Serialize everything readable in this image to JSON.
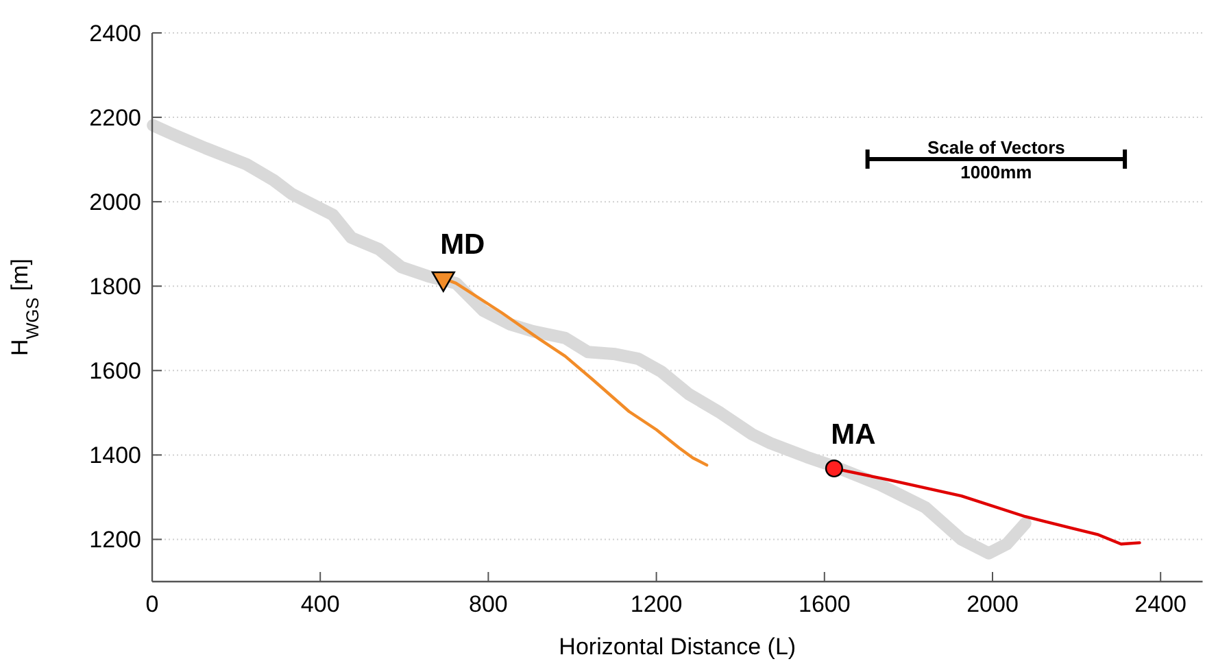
{
  "chart_data": {
    "type": "line",
    "xlabel": "Horizontal Distance (L)",
    "ylabel": "H$_{WGS}$ [m]",
    "xlim": [
      0,
      2500
    ],
    "ylim": [
      1100,
      2400
    ],
    "xticks": [
      0,
      400,
      800,
      1200,
      1600,
      2000,
      2400
    ],
    "yticks": [
      1200,
      1400,
      1600,
      1800,
      2000,
      2200,
      2400
    ],
    "grid": "y",
    "line_style": "solid",
    "series": [
      {
        "color": "#d9d9d9",
        "x": [
          2,
          51,
          127,
          224,
          289,
          333,
          430,
          474,
          539,
          593,
          658,
          723,
          788,
          853,
          907,
          983,
          1037,
          1102,
          1157,
          1211,
          1276,
          1352,
          1428,
          1471,
          1558,
          1623,
          1731,
          1840,
          1926,
          1991,
          2034,
          2078
        ],
        "values": [
          2181,
          2159,
          2127,
          2089,
          2051,
          2018,
          1969,
          1915,
          1888,
          1845,
          1823,
          1807,
          1742,
          1709,
          1693,
          1677,
          1644,
          1639,
          1628,
          1598,
          1545,
          1500,
          1449,
          1428,
          1395,
          1373,
          1330,
          1276,
          1200,
          1167,
          1189,
          1238
        ]
      },
      {
        "color": "#f28c28",
        "x": [
          693,
          723,
          832,
          918,
          983,
          1048,
          1135,
          1200,
          1254,
          1287,
          1320
        ],
        "values": [
          1818,
          1807,
          1737,
          1677,
          1634,
          1579,
          1503,
          1460,
          1417,
          1393,
          1376
        ]
      },
      {
        "color": "#e00000",
        "x": [
          1623,
          1753,
          1926,
          2078,
          2187,
          2252,
          2306,
          2350
        ],
        "values": [
          1368,
          1341,
          1303,
          1254,
          1227,
          1211,
          1189,
          1192
        ]
      },
      {
        "type": "scatter",
        "color": "#f28c28",
        "marker": "triangle",
        "x": [
          693
        ],
        "values": [
          1818
        ]
      },
      {
        "type": "scatter",
        "color": "#ff2020",
        "marker": "circle",
        "x": [
          1623
        ],
        "values": [
          1368
        ]
      }
    ],
    "annotations": [
      {
        "text": "MD",
        "x": 693,
        "y": 1818
      },
      {
        "text": "MA",
        "x": 1623,
        "y": 1368
      },
      "Scale of Vectors",
      "1000mm"
    ]
  }
}
